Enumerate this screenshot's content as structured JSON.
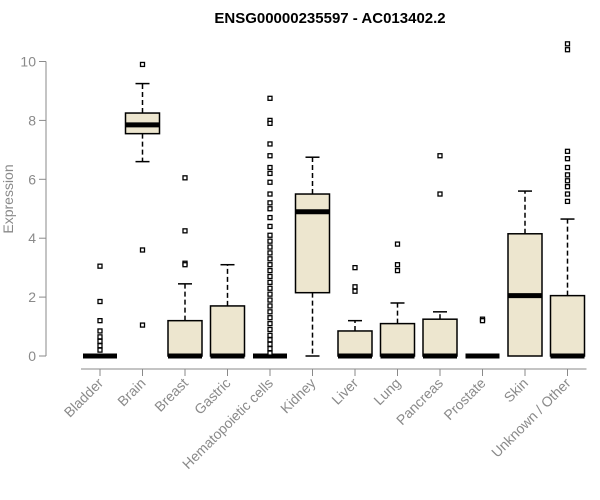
{
  "chart_data": {
    "type": "boxplot",
    "title": "ENSG00000235597 - AC013402.2",
    "xlabel": "",
    "ylabel": "Expression",
    "ylim": [
      0,
      10.5
    ],
    "yticks": [
      0,
      2,
      4,
      6,
      8,
      10
    ],
    "grid": false,
    "colors": {
      "box_fill": "#ede6cf",
      "box_stroke": "#000000",
      "axis": "#8a8a8a"
    },
    "categories": [
      "Bladder",
      "Brain",
      "Breast",
      "Gastric",
      "Hematopoietic cells",
      "Kidney",
      "Liver",
      "Lung",
      "Pancreas",
      "Prostate",
      "Skin",
      "Unknown / Other"
    ],
    "boxes": [
      {
        "category": "Bladder",
        "q1": 0,
        "median": 0,
        "q3": 0,
        "whisker_low": 0,
        "whisker_high": 0,
        "outliers": [
          3.05,
          1.85,
          1.2,
          0.85,
          0.65,
          0.5,
          0.35,
          0.2
        ]
      },
      {
        "category": "Brain",
        "q1": 7.55,
        "median": 7.85,
        "q3": 8.25,
        "whisker_low": 6.6,
        "whisker_high": 9.25,
        "outliers": [
          9.9,
          3.6,
          1.05
        ]
      },
      {
        "category": "Breast",
        "q1": 0,
        "median": 0,
        "q3": 1.2,
        "whisker_low": 0,
        "whisker_high": 2.45,
        "outliers": [
          6.05,
          4.25,
          3.15,
          3.1
        ]
      },
      {
        "category": "Gastric",
        "q1": 0,
        "median": 0,
        "q3": 1.7,
        "whisker_low": 0,
        "whisker_high": 3.1,
        "outliers": []
      },
      {
        "category": "Hematopoietic cells",
        "q1": 0,
        "median": 0,
        "q3": 0,
        "whisker_low": 0,
        "whisker_high": 0,
        "outliers": [
          8.75,
          8.0,
          7.9,
          7.2,
          6.8,
          6.4,
          6.2,
          5.9,
          5.5,
          5.2,
          5.0,
          4.7,
          4.4,
          4.1,
          3.9,
          3.7,
          3.5,
          3.3,
          3.1,
          2.9,
          2.7,
          2.5,
          2.3,
          2.1,
          1.9,
          1.7,
          1.5,
          1.3,
          1.1,
          0.9,
          0.7,
          0.55,
          0.4,
          0.25,
          0.1
        ]
      },
      {
        "category": "Kidney",
        "q1": 2.15,
        "median": 4.9,
        "q3": 5.5,
        "whisker_low": 0,
        "whisker_high": 6.75,
        "outliers": []
      },
      {
        "category": "Liver",
        "q1": 0,
        "median": 0,
        "q3": 0.85,
        "whisker_low": 0,
        "whisker_high": 1.2,
        "outliers": [
          3.0,
          2.35,
          2.2
        ]
      },
      {
        "category": "Lung",
        "q1": 0,
        "median": 0,
        "q3": 1.1,
        "whisker_low": 0,
        "whisker_high": 1.8,
        "outliers": [
          3.8,
          3.1,
          2.9
        ]
      },
      {
        "category": "Pancreas",
        "q1": 0,
        "median": 0,
        "q3": 1.25,
        "whisker_low": 0,
        "whisker_high": 1.5,
        "outliers": [
          6.8,
          5.5
        ]
      },
      {
        "category": "Prostate",
        "q1": 0,
        "median": 0,
        "q3": 0,
        "whisker_low": 0,
        "whisker_high": 0,
        "outliers": [
          1.25,
          1.2
        ]
      },
      {
        "category": "Skin",
        "q1": 0,
        "median": 2.05,
        "q3": 4.15,
        "whisker_low": 0,
        "whisker_high": 5.6,
        "outliers": []
      },
      {
        "category": "Unknown / Other",
        "q1": 0,
        "median": 0,
        "q3": 2.05,
        "whisker_low": 0,
        "whisker_high": 4.65,
        "outliers": [
          10.6,
          10.4,
          6.95,
          6.7,
          6.4,
          6.15,
          5.95,
          5.75,
          5.5,
          5.25
        ]
      }
    ]
  }
}
